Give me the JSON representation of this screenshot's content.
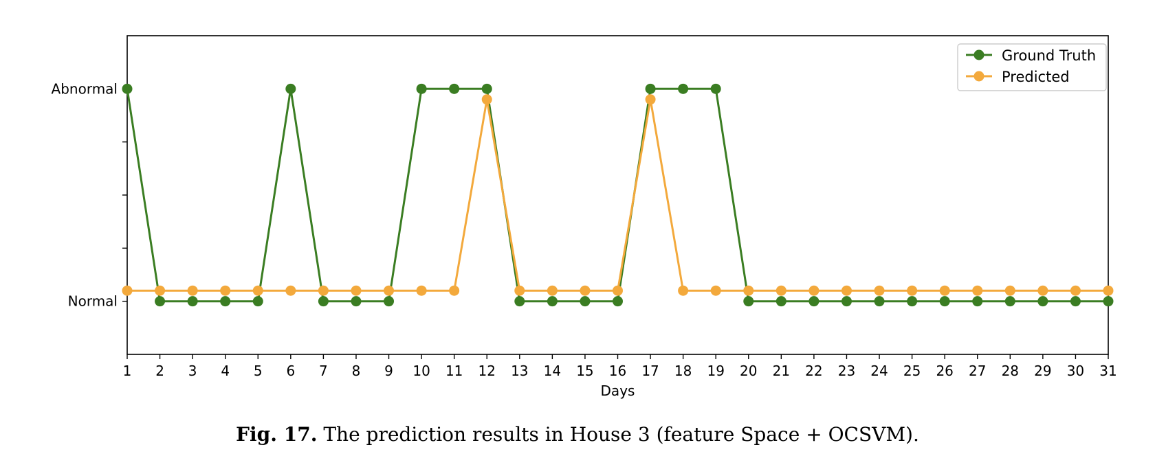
{
  "chart_data": {
    "type": "line",
    "xlabel": "Days",
    "ylabel": "",
    "x": [
      1,
      2,
      3,
      4,
      5,
      6,
      7,
      8,
      9,
      10,
      11,
      12,
      13,
      14,
      15,
      16,
      17,
      18,
      19,
      20,
      21,
      22,
      23,
      24,
      25,
      26,
      27,
      28,
      29,
      30,
      31
    ],
    "xticks": [
      "1",
      "2",
      "3",
      "4",
      "5",
      "6",
      "7",
      "8",
      "9",
      "10",
      "11",
      "12",
      "13",
      "14",
      "15",
      "16",
      "17",
      "18",
      "19",
      "20",
      "21",
      "22",
      "23",
      "24",
      "25",
      "26",
      "27",
      "28",
      "29",
      "30",
      "31"
    ],
    "xlim": [
      1,
      31
    ],
    "ylim": [
      -0.25,
      1.25
    ],
    "yticks": [
      {
        "value": 0,
        "label": "Normal"
      },
      {
        "value": 0.25,
        "label": ""
      },
      {
        "value": 0.5,
        "label": ""
      },
      {
        "value": 0.75,
        "label": ""
      },
      {
        "value": 1,
        "label": "Abnormal"
      }
    ],
    "legend_position": "top-right",
    "grid": false,
    "series": [
      {
        "name": "Ground Truth",
        "color": "#3a7d22",
        "values": [
          1,
          0,
          0,
          0,
          0,
          1,
          0,
          0,
          0,
          1,
          1,
          1,
          0,
          0,
          0,
          0,
          1,
          1,
          1,
          0,
          0,
          0,
          0,
          0,
          0,
          0,
          0,
          0,
          0,
          0,
          0
        ]
      },
      {
        "name": "Predicted",
        "color": "#f3a93c",
        "values": [
          0.05,
          0.05,
          0.05,
          0.05,
          0.05,
          0.05,
          0.05,
          0.05,
          0.05,
          0.05,
          0.05,
          0.95,
          0.05,
          0.05,
          0.05,
          0.05,
          0.95,
          0.05,
          0.05,
          0.05,
          0.05,
          0.05,
          0.05,
          0.05,
          0.05,
          0.05,
          0.05,
          0.05,
          0.05,
          0.05,
          0.05
        ]
      }
    ]
  },
  "caption": {
    "label": "Fig. 17.",
    "text": "The prediction results in House 3 (feature Space + OCSVM)."
  }
}
